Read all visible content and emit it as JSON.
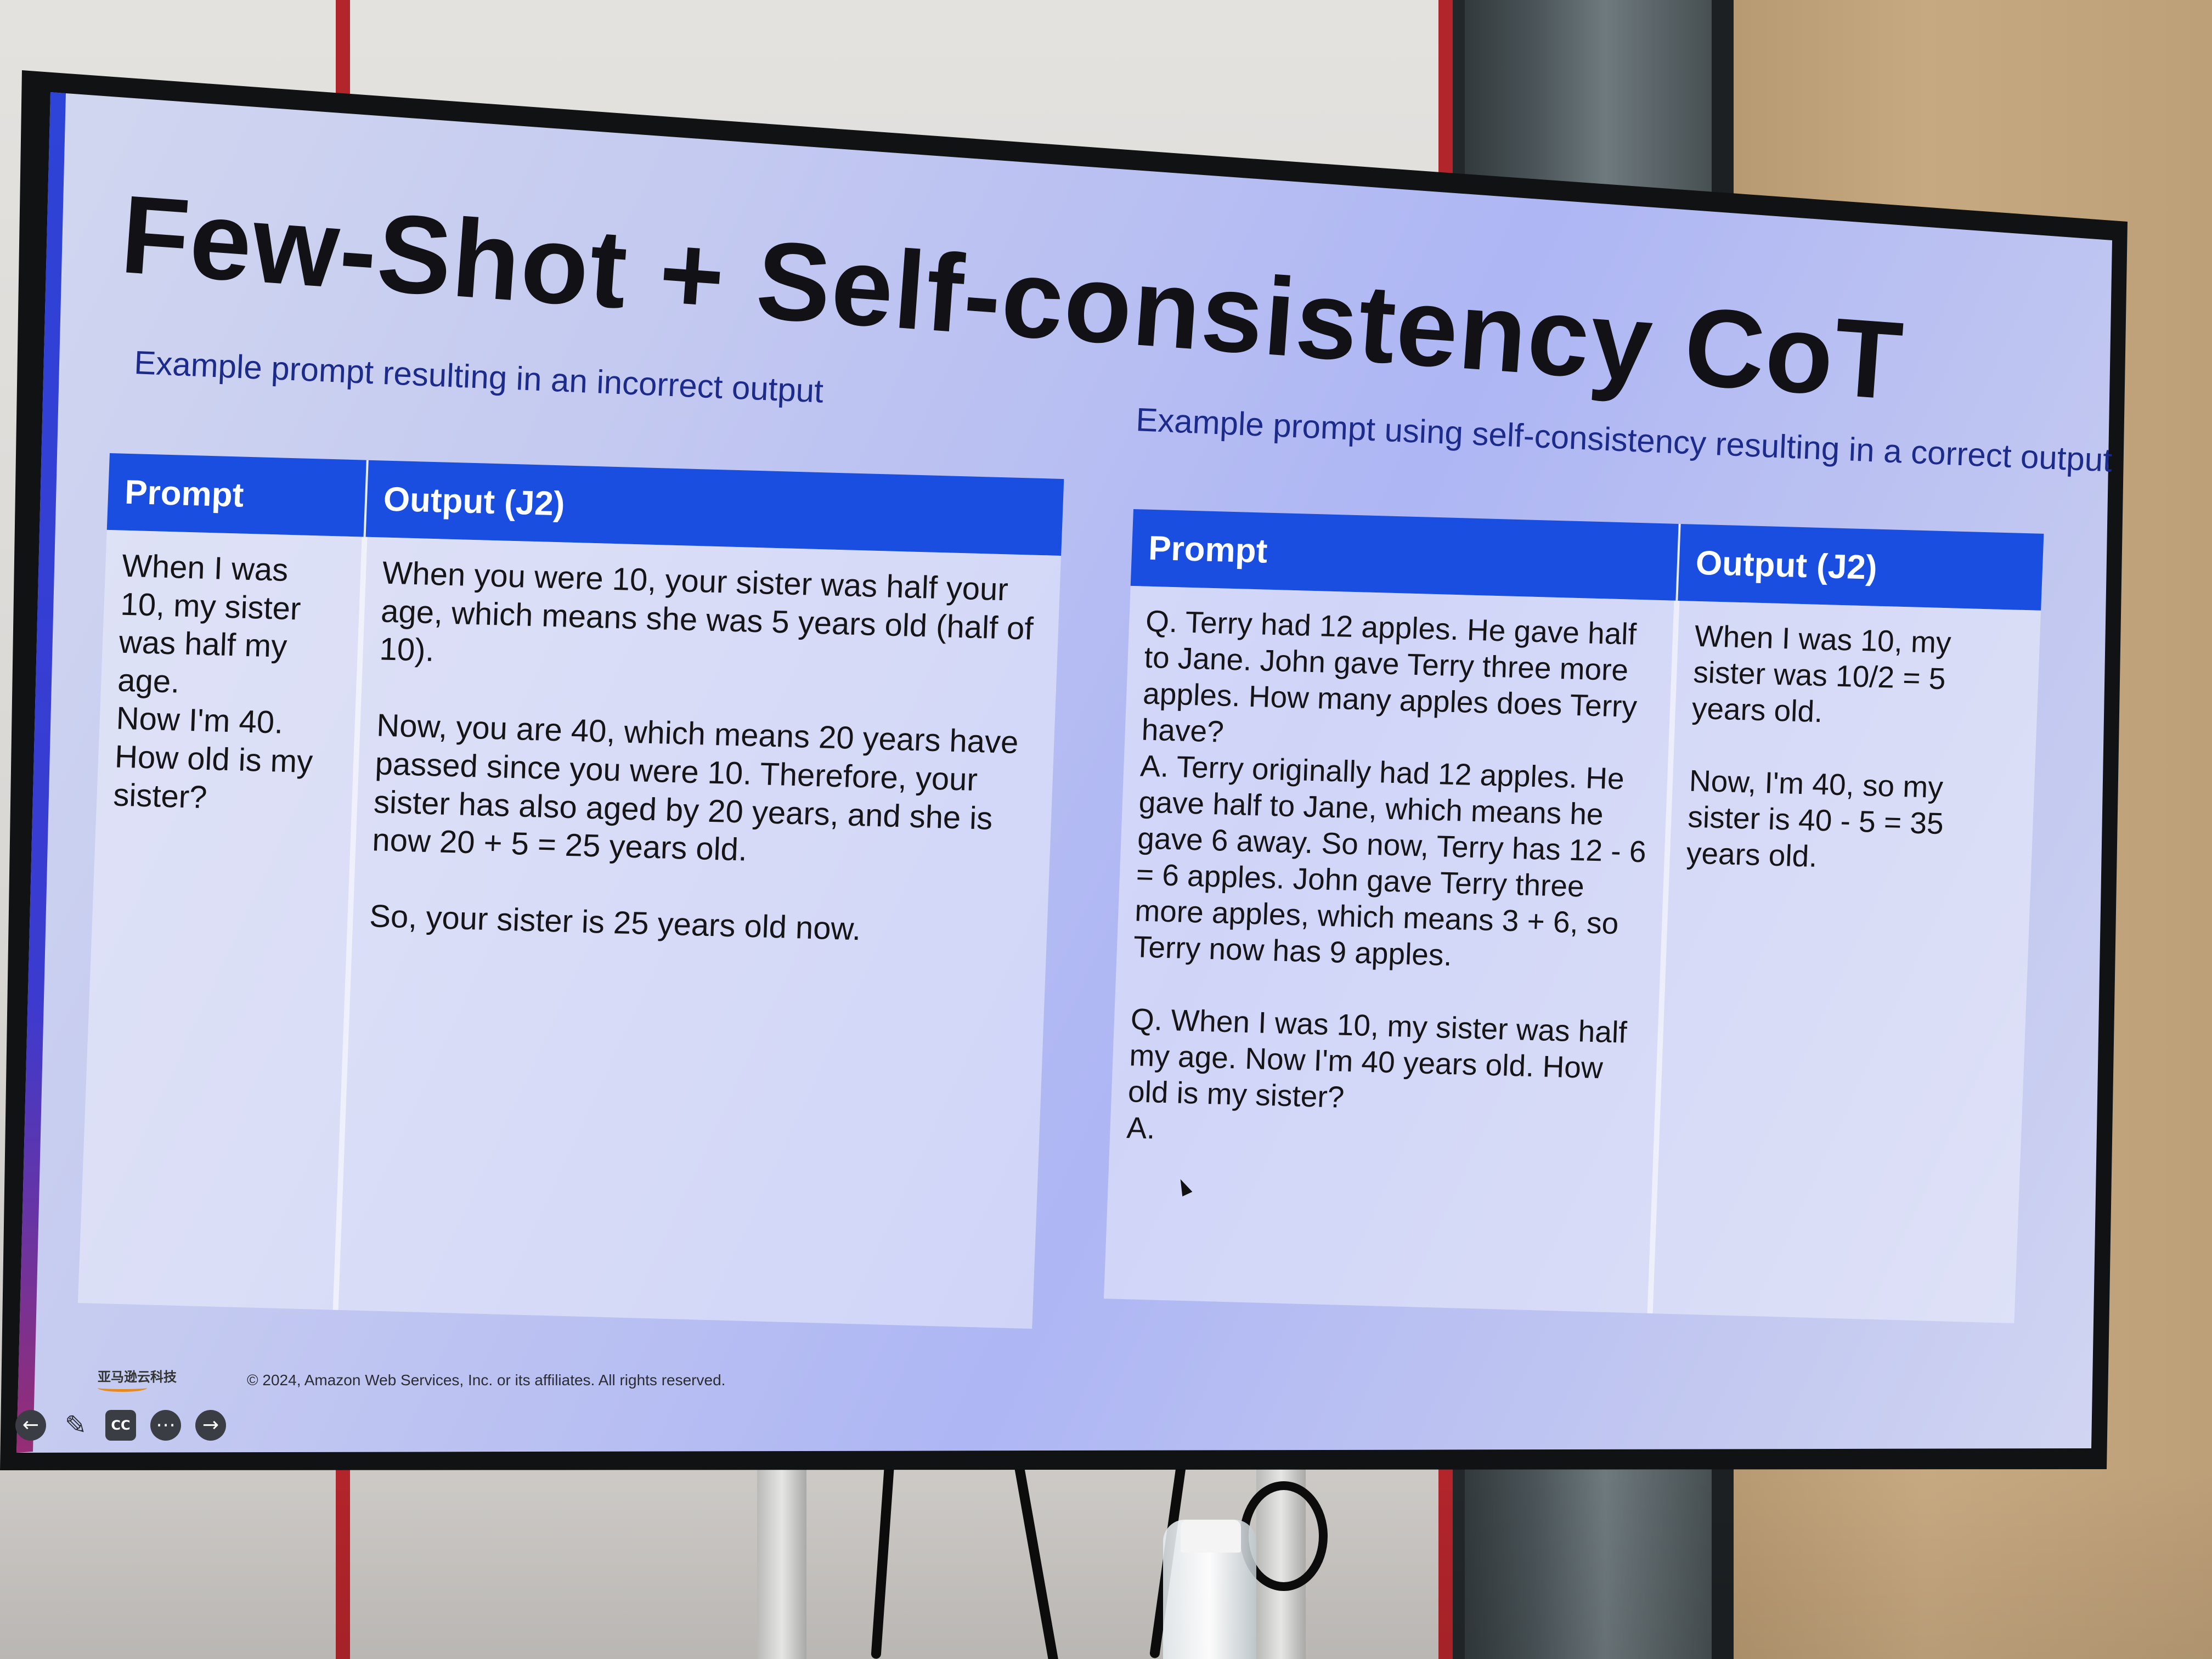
{
  "slide": {
    "title": "Few-Shot + Self-consistency CoT",
    "left": {
      "subtitle": "Example prompt resulting in an incorrect output",
      "headers": [
        "Prompt",
        "Output (J2)"
      ],
      "prompt": "When I was\n10, my sister\nwas half my\nage.\nNow I'm 40.\nHow old is my\nsister?",
      "output": "When you were 10, your sister was half your age, which means she was 5 years old (half of 10).\n\nNow, you are 40, which means 20 years have passed since you were 10. Therefore, your sister has also aged by 20 years, and she is now 20 + 5 = 25 years old.\n\nSo, your sister is 25 years old now."
    },
    "right": {
      "subtitle": "Example prompt using self-consistency resulting in a correct output",
      "headers": [
        "Prompt",
        "Output (J2)"
      ],
      "prompt": "Q. Terry had 12 apples. He gave half to Jane. John gave Terry three more apples. How many apples does Terry have?\nA. Terry originally had 12 apples. He gave half to Jane, which means he gave 6 away. So now, Terry has 12 - 6 = 6 apples. John gave Terry three more apples, which means 3 + 6, so Terry now has 9 apples.\n\nQ. When I was 10, my sister was half my age. Now I'm 40 years old. How old is my sister?\nA.",
      "output": "When I was 10, my sister was 10/2 = 5 years old.\n\nNow, I'm 40, so my sister is 40 - 5 = 35 years old."
    },
    "footer": {
      "logo_text": "亚马逊云科技",
      "copyright": "© 2024, Amazon Web Services, Inc. or its affiliates. All rights reserved."
    },
    "controls": [
      "arrow-left-icon",
      "pen-icon",
      "cc-icon",
      "more-icon",
      "arrow-right-icon"
    ],
    "controls_labels": {
      "cc": "CC"
    }
  }
}
